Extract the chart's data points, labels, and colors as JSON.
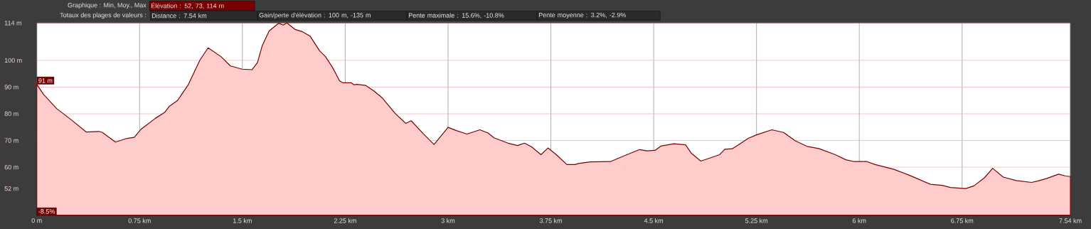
{
  "chart_data": {
    "type": "area",
    "x": [
      0,
      0.05,
      0.146,
      0.248,
      0.36,
      0.454,
      0.479,
      0.574,
      0.659,
      0.711,
      0.762,
      0.796,
      0.865,
      0.933,
      0.967,
      1.027,
      1.104,
      1.19,
      1.25,
      1.344,
      1.413,
      1.498,
      1.57,
      1.61,
      1.644,
      1.695,
      1.764,
      1.798,
      1.824,
      1.884,
      1.935,
      1.995,
      2.063,
      2.106,
      2.157,
      2.209,
      2.235,
      2.295,
      2.312,
      2.337,
      2.4,
      2.46,
      2.521,
      2.615,
      2.692,
      2.731,
      2.82,
      2.898,
      3.0,
      3.061,
      3.138,
      3.232,
      3.292,
      3.335,
      3.438,
      3.507,
      3.558,
      3.61,
      3.678,
      3.729,
      3.79,
      3.867,
      3.926,
      3.952,
      4.038,
      4.184,
      4.295,
      4.398,
      4.45,
      4.51,
      4.552,
      4.647,
      4.733,
      4.775,
      4.844,
      4.913,
      4.981,
      5.019,
      5.073,
      5.122,
      5.19,
      5.25,
      5.362,
      5.448,
      5.533,
      5.619,
      5.705,
      5.825,
      5.902,
      5.962,
      6.056,
      6.116,
      6.253,
      6.374,
      6.519,
      6.605,
      6.665,
      6.776,
      6.836,
      6.914,
      6.973,
      7.05,
      7.145,
      7.256,
      7.3,
      7.368,
      7.454,
      7.505,
      7.54
    ],
    "series": [
      {
        "color": "#7a0000",
        "values": [
          91,
          87.2,
          81.9,
          77.9,
          73.2,
          73.4,
          73,
          69.4,
          70.8,
          71.2,
          74.3,
          75.6,
          78.3,
          80.5,
          82.8,
          85,
          90.8,
          100.1,
          104.7,
          101.4,
          97.9,
          96.7,
          96.5,
          99.2,
          105.4,
          111,
          113.9,
          113.2,
          114,
          111.6,
          110.8,
          109,
          103.6,
          101.4,
          97.4,
          92.3,
          91.6,
          91.6,
          90.9,
          91,
          90.6,
          88.5,
          85.9,
          80.1,
          76.4,
          77.4,
          72.5,
          68.5,
          74.9,
          73.7,
          72.4,
          74,
          72.8,
          71,
          69,
          68.1,
          69,
          67.6,
          64.7,
          67.2,
          64.7,
          61,
          61,
          61.4,
          62,
          62.1,
          64.5,
          66.6,
          66.1,
          66.3,
          67.9,
          68.8,
          68.4,
          65.2,
          62.3,
          63.5,
          64.7,
          66.7,
          66.9,
          68.5,
          70.8,
          72.1,
          74,
          73,
          69.9,
          67.8,
          67,
          64.7,
          62.8,
          62.1,
          62.1,
          61,
          59.2,
          56.8,
          53.6,
          53.2,
          52.4,
          52,
          53,
          56.1,
          59.6,
          56.3,
          55,
          54.3,
          54.8,
          55.8,
          57.4,
          56.7,
          56.5
        ]
      }
    ],
    "xlim": [
      0,
      7.54
    ],
    "ylim": [
      42,
      114
    ],
    "xticks": [
      {
        "value": 0,
        "label": "0 m"
      },
      {
        "value": 0.75,
        "label": "0.75 km"
      },
      {
        "value": 1.5,
        "label": "1.5 km"
      },
      {
        "value": 2.25,
        "label": "2.25 km"
      },
      {
        "value": 3,
        "label": "3 km"
      },
      {
        "value": 3.75,
        "label": "3.75 km"
      },
      {
        "value": 4.5,
        "label": "4.5 km"
      },
      {
        "value": 5.25,
        "label": "5.25 km"
      },
      {
        "value": 6,
        "label": "6 km"
      },
      {
        "value": 6.75,
        "label": "6.75 km"
      },
      {
        "value": 7.54,
        "label": "7.54 km"
      }
    ],
    "yticks": [
      {
        "value": 52,
        "label": "52 m"
      },
      {
        "value": 60,
        "label": "60 m"
      },
      {
        "value": 70,
        "label": "70 m"
      },
      {
        "value": 80,
        "label": "80 m"
      },
      {
        "value": 90,
        "label": "90 m"
      },
      {
        "value": 100,
        "label": "100 m"
      },
      {
        "value": 114,
        "label": "114 m"
      }
    ],
    "grid": true,
    "annotations": [
      "Graphique : Min, Moy., Max",
      "Élévation : 52, 73, 114 m",
      "Totaux des plages de valeurs :",
      "Distance : 7.54 km",
      "Gain/perte d'élévation : 100 m, -135 m",
      "Pente maximale : 15.6%, -10.8%",
      "Pente moyenne : 3.2%, -2.9%",
      "-8.5%",
      {
        "text": "91 m",
        "x": 0,
        "y": 91
      }
    ]
  }
}
